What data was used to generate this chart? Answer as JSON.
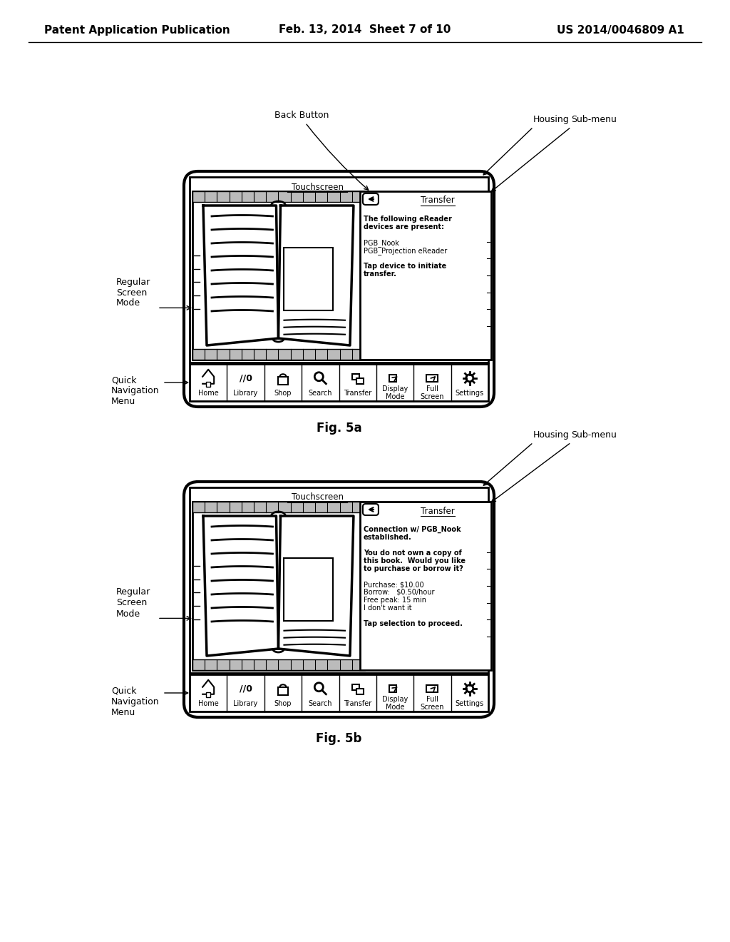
{
  "bg_color": "#ffffff",
  "header_left": "Patent Application Publication",
  "header_center": "Feb. 13, 2014  Sheet 7 of 10",
  "header_right": "US 2014/0046809 A1",
  "fig5a_label": "Fig. 5a",
  "fig5b_label": "Fig. 5b",
  "fig5a_transfer_body_bold": [
    "The following eReader",
    "devices are present:",
    "Tap device to initiate",
    "transfer."
  ],
  "fig5a_transfer_body": [
    "The following eReader",
    "devices are present:",
    "",
    "PGB_Nook",
    "PGB_Projection eReader",
    "",
    "Tap device to initiate",
    "transfer."
  ],
  "fig5b_transfer_body_bold": [
    "Connection w/ PGB_Nook",
    "established.",
    "You do not own a copy of",
    "this book.  Would you like",
    "to purchase or borrow it?",
    "Tap selection to proceed."
  ],
  "fig5b_transfer_body": [
    "Connection w/ PGB_Nook",
    "established.",
    "",
    "You do not own a copy of",
    "this book.  Would you like",
    "to purchase or borrow it?",
    "",
    "Purchase: $10.00",
    "Borrow:   $0.50/hour",
    "Free peak: 15 min",
    "I don't want it",
    "",
    "Tap selection to proceed."
  ],
  "nav_items": [
    "Home",
    "Library",
    "Shop",
    "Search",
    "Transfer",
    "Display\nMode",
    "Full\nScreen",
    "Settings"
  ]
}
